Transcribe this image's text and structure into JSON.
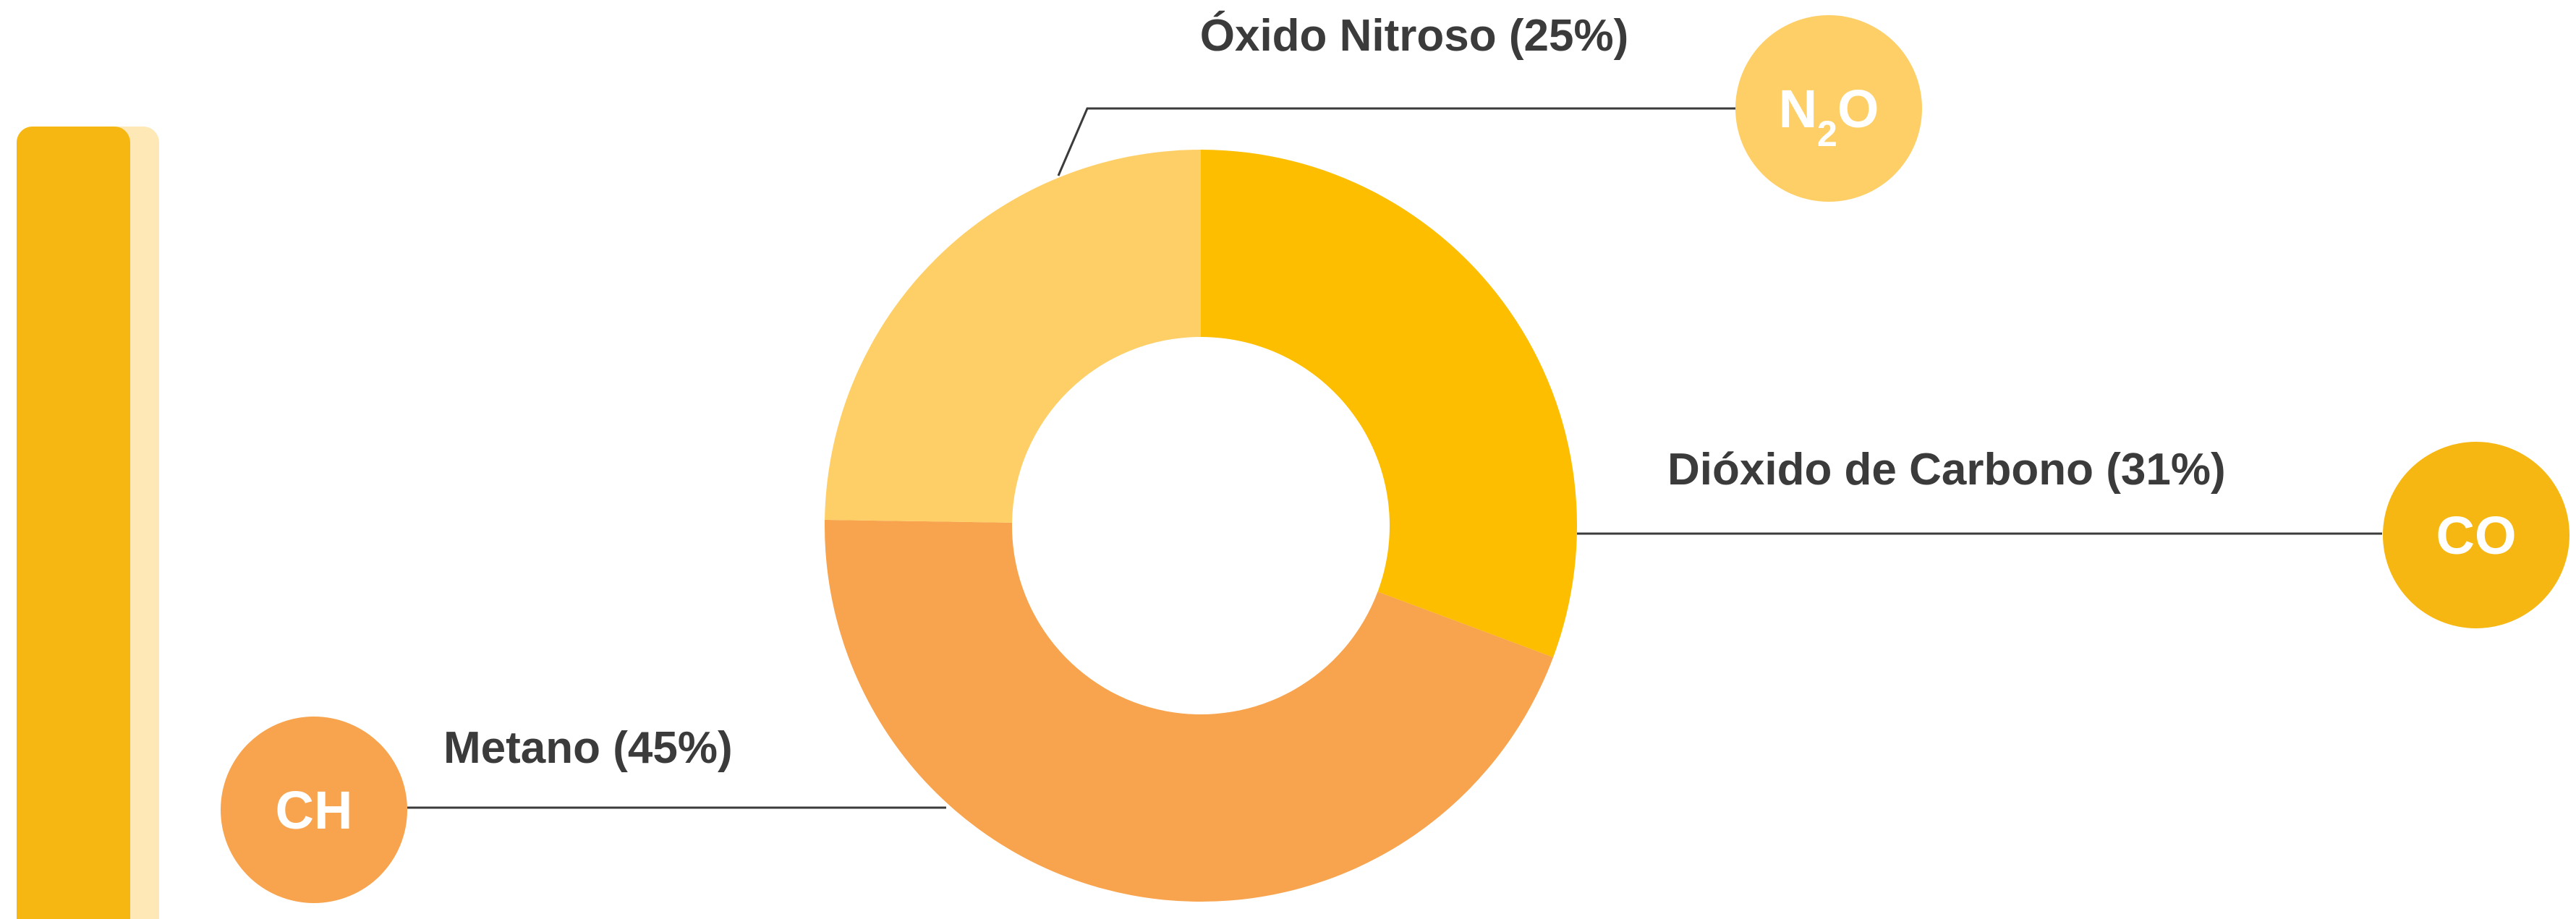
{
  "chart_data": {
    "type": "donut",
    "series": [
      {
        "name": "Dióxido de Carbono",
        "label": "Dióxido de Carbono (31%)",
        "value": 31,
        "color": "#FDBE00",
        "badge": [
          "CO"
        ],
        "badge_color": "#F6B712"
      },
      {
        "name": "Metano",
        "label": "Metano (45%)",
        "value": 45,
        "color": "#F8A34D",
        "badge": [
          "CH"
        ],
        "badge_color": "#F8A34D"
      },
      {
        "name": "Óxido Nitroso",
        "label": "Óxido Nitroso (25%)",
        "value": 25,
        "color": "#FECF66",
        "badge": [
          "N",
          "2",
          "O"
        ],
        "badge_color": "#FECF66"
      }
    ]
  }
}
